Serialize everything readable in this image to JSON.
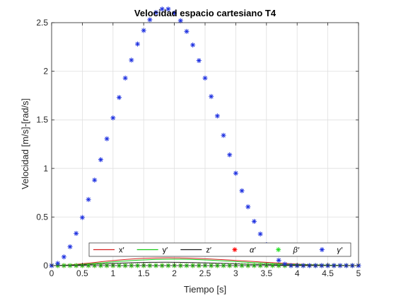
{
  "figure": {
    "background": "#ffffff",
    "axes_background": "#ffffff",
    "axis_color": "#262626",
    "grid_color": "#dfdfdf"
  },
  "chart_data": {
    "type": "line",
    "title": "Velocidad espacio cartesiano T4",
    "xlabel": "Tiempo [s]",
    "ylabel": "Velocidad [m/s]-[rad/s]",
    "xlim": [
      0,
      5
    ],
    "ylim": [
      0,
      2.5
    ],
    "grid": true,
    "xticks": [
      0,
      0.5,
      1,
      1.5,
      2,
      2.5,
      3,
      3.5,
      4,
      4.5,
      5
    ],
    "xtick_labels": [
      "0",
      "0.5",
      "1",
      "1.5",
      "2",
      "2.5",
      "3",
      "3.5",
      "4",
      "4.5",
      "5"
    ],
    "yticks": [
      0,
      0.5,
      1,
      1.5,
      2,
      2.5
    ],
    "ytick_labels": [
      "0",
      "0.5",
      "1",
      "1.5",
      "2",
      "2.5"
    ],
    "legend_position": "bottom",
    "legend_orientation": "horizontal",
    "x": [
      0,
      0.1,
      0.2,
      0.3,
      0.4,
      0.5,
      0.6,
      0.7,
      0.8,
      0.9,
      1.0,
      1.1,
      1.2,
      1.3,
      1.4,
      1.5,
      1.6,
      1.7,
      1.8,
      1.9,
      2.0,
      2.1,
      2.2,
      2.3,
      2.4,
      2.5,
      2.6,
      2.7,
      2.8,
      2.9,
      3.0,
      3.1,
      3.2,
      3.3,
      3.4,
      3.5,
      3.6,
      3.7,
      3.8,
      3.9,
      4.0,
      4.1,
      4.2,
      4.3,
      4.4,
      4.5,
      4.6,
      4.7,
      4.8,
      4.9,
      5.0
    ],
    "series": [
      {
        "name": "x′",
        "color": "#d62020",
        "style": "line",
        "values": [
          0,
          0.0009,
          0.0035,
          0.0076,
          0.0128,
          0.0188,
          0.0253,
          0.0321,
          0.0388,
          0.0454,
          0.0516,
          0.0574,
          0.0626,
          0.0672,
          0.0711,
          0.0743,
          0.0768,
          0.0786,
          0.0796,
          0.08,
          0.0797,
          0.0788,
          0.0774,
          0.0755,
          0.0731,
          0.0704,
          0.0674,
          0.0642,
          0.0607,
          0.0571,
          0.0533,
          0.0494,
          0.0455,
          0.0415,
          0.0375,
          0.0336,
          0.0298,
          0.026,
          0.0225,
          0.0191,
          0.0159,
          0.0129,
          0.0102,
          0.0078,
          0.0057,
          0.0039,
          0.0025,
          0.0014,
          0.0006,
          0.0002,
          0
        ]
      },
      {
        "name": "y′",
        "color": "#19c819",
        "style": "line",
        "values": [
          0,
          0.0006,
          0.0023,
          0.005,
          0.0086,
          0.0128,
          0.0175,
          0.0225,
          0.0277,
          0.0329,
          0.038,
          0.0429,
          0.0475,
          0.0517,
          0.0555,
          0.0587,
          0.0614,
          0.0635,
          0.0649,
          0.0657,
          0.0659,
          0.0654,
          0.0644,
          0.0628,
          0.0607,
          0.0582,
          0.0553,
          0.0521,
          0.0487,
          0.0451,
          0.0414,
          0.0377,
          0.034,
          0.0304,
          0.0269,
          0.0236,
          0.0205,
          0.0177,
          0.0151,
          0.0128,
          0.0108,
          0.0091,
          0.0076,
          0.0063,
          0.0052,
          0.0042,
          0.0033,
          0.0025,
          0.0016,
          0.0008,
          0
        ]
      },
      {
        "name": "z′",
        "color": "#1a1a1a",
        "style": "line",
        "values": [
          0,
          0.0004,
          0.0014,
          0.0031,
          0.0052,
          0.0077,
          0.0104,
          0.0133,
          0.0162,
          0.0191,
          0.0219,
          0.0245,
          0.0269,
          0.029,
          0.0308,
          0.0322,
          0.0333,
          0.034,
          0.0343,
          0.0343,
          0.0339,
          0.0332,
          0.0322,
          0.031,
          0.0295,
          0.0279,
          0.0262,
          0.0244,
          0.0225,
          0.0206,
          0.0187,
          0.0168,
          0.015,
          0.0132,
          0.0116,
          0.01,
          0.0086,
          0.0073,
          0.0061,
          0.0051,
          0.0041,
          0.0033,
          0.0026,
          0.002,
          0.0015,
          0.0011,
          0.0007,
          0.0004,
          0.0002,
          0.0001,
          0
        ]
      },
      {
        "name": "α′",
        "color": "#ff0000",
        "style": "star",
        "values": [
          0,
          0,
          0,
          0,
          0,
          0,
          0,
          0,
          0,
          0,
          0,
          0,
          0,
          0,
          0,
          0,
          0,
          0,
          0,
          0,
          0,
          0,
          0,
          0,
          0,
          0,
          0,
          0,
          0,
          0,
          0,
          0,
          0,
          0,
          0,
          0,
          0,
          0,
          0,
          0,
          0,
          0,
          0,
          0,
          0,
          0,
          0,
          0,
          0,
          0,
          0
        ]
      },
      {
        "name": "β′",
        "color": "#22e022",
        "style": "star",
        "values": [
          0,
          0,
          0,
          0,
          0,
          0,
          0,
          0,
          0,
          0,
          0,
          0,
          0,
          0,
          0,
          0,
          0,
          0,
          0,
          0,
          0,
          0,
          0,
          0,
          0,
          0,
          0,
          0,
          0,
          0,
          0,
          0,
          0,
          0,
          0,
          0,
          0,
          0,
          0,
          0,
          0,
          0,
          0,
          0,
          0,
          0,
          0,
          0,
          0,
          0,
          0
        ]
      },
      {
        "name": "γ′",
        "color": "#1c2fe0",
        "style": "star",
        "values": [
          0,
          0.023,
          0.089,
          0.194,
          0.331,
          0.495,
          0.68,
          0.88,
          1.09,
          1.305,
          1.52,
          1.73,
          1.93,
          2.115,
          2.28,
          2.42,
          2.53,
          2.605,
          2.64,
          2.64,
          2.6,
          2.52,
          2.41,
          2.27,
          2.11,
          1.93,
          1.74,
          1.54,
          1.34,
          1.14,
          0.95,
          0.77,
          0.605,
          0.455,
          0.325,
          0.215,
          0.125,
          0.055,
          0.015,
          0.0,
          0.0,
          0.0,
          0.0,
          0.0,
          0.0,
          0.0,
          0.0,
          0.0,
          0.0,
          0.0,
          0
        ]
      }
    ]
  }
}
